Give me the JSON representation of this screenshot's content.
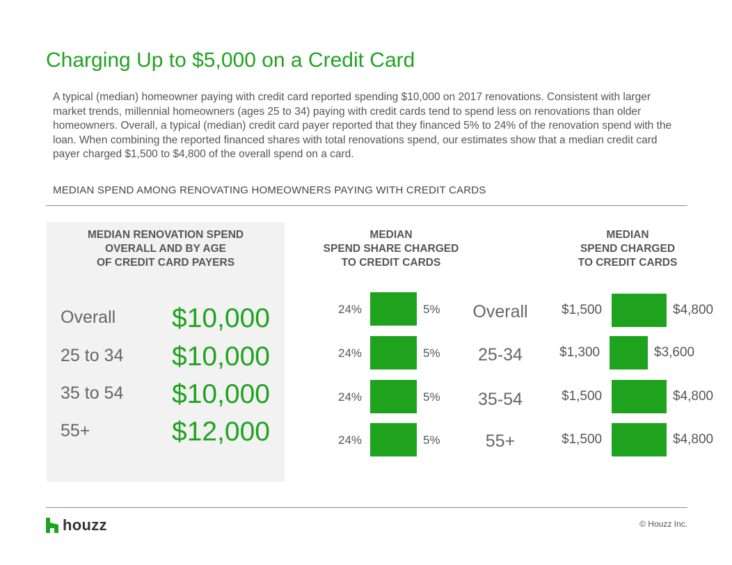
{
  "header": {
    "title": "Charging Up to $5,000 on a Credit Card",
    "intro": "A typical (median) homeowner paying with credit card reported spending $10,000 on 2017 renovations. Consistent with larger market trends, millennial homeowners (ages 25 to 34) paying with credit cards tend to spend less on renovations than older homeowners. Overall, a typical (median) credit card payer reported that they financed 5% to 24% of the renovation spend with the loan. When combining the reported financed shares with total renovations spend, our estimates show that a median credit card payer charged $1,500 to $4,800 of the overall spend on a card.",
    "section_heading": "MEDIAN SPEND AMONG RENOVATING HOMEOWNERS PAYING WITH CREDIT CARDS"
  },
  "columns": {
    "col1": [
      "MEDIAN RENOVATION SPEND",
      "OVERALL AND BY AGE",
      "OF CREDIT CARD PAYERS"
    ],
    "col2": [
      "MEDIAN",
      "SPEND SHARE CHARGED",
      "TO CREDIT CARDS"
    ],
    "col3": [
      "MEDIAN",
      "SPEND CHARGED",
      "TO CREDIT CARDS"
    ]
  },
  "footer": {
    "logo_text": "houzz",
    "copyright": "© Houzz Inc."
  },
  "colors": {
    "accent": "#1fa31f",
    "panel": "#f2f2f2",
    "text": "#555555"
  },
  "chart_data": [
    {
      "type": "table",
      "title": "MEDIAN RENOVATION SPEND OVERALL AND BY AGE OF CREDIT CARD PAYERS",
      "categories": [
        "Overall",
        "25 to 34",
        "35 to 54",
        "55+"
      ],
      "values": [
        10000,
        10000,
        10000,
        12000
      ],
      "value_labels": [
        "$10,000",
        "$10,000",
        "$10,000",
        "$12,000"
      ]
    },
    {
      "type": "bar",
      "title": "MEDIAN SPEND SHARE CHARGED TO CREDIT CARDS",
      "categories": [
        "Overall",
        "25-34",
        "35-54",
        "55+"
      ],
      "series": [
        {
          "values": [
            24,
            24,
            24,
            24
          ],
          "labels": [
            "24%",
            "24%",
            "24%",
            "24%"
          ]
        },
        {
          "values": [
            5,
            5,
            5,
            5
          ],
          "labels": [
            "5%",
            "5%",
            "5%",
            "5%"
          ]
        }
      ]
    },
    {
      "type": "bar",
      "title": "MEDIAN SPEND CHARGED TO CREDIT CARDS",
      "categories": [
        "Overall",
        "25-34",
        "35-54",
        "55+"
      ],
      "series": [
        {
          "values": [
            1500,
            1300,
            1500,
            1500
          ],
          "labels": [
            "$1,500",
            "$1,300",
            "$1,500",
            "$1,500"
          ]
        },
        {
          "values": [
            4800,
            3600,
            4800,
            4800
          ],
          "labels": [
            "$4,800",
            "$3,600",
            "$4,800",
            "$4,800"
          ]
        }
      ]
    }
  ]
}
